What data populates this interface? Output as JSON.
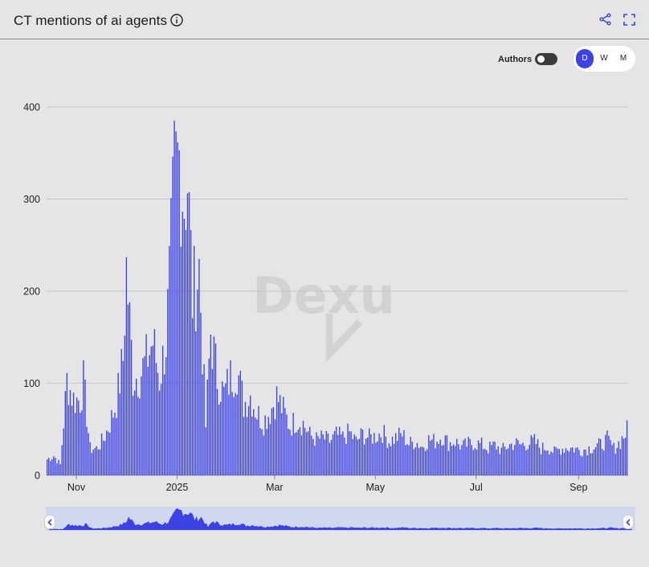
{
  "header": {
    "title": "CT mentions of ai agents"
  },
  "controls": {
    "authors_label": "Authors",
    "authors_toggle_on": false,
    "periods": [
      "D",
      "W",
      "M"
    ],
    "active_period": "D"
  },
  "watermark": "Dexu",
  "colors": {
    "bar": "#3c42e6",
    "nav_fill": "#3c42e6",
    "nav_bg": "#cfd8ec",
    "gridline": "#c8c8c8"
  },
  "chart_data": {
    "type": "bar",
    "ylim": [
      0,
      400
    ],
    "yticks": [
      0,
      100,
      200,
      300,
      400
    ],
    "x_tick_labels": [
      "Nov",
      "2025",
      "Mar",
      "May",
      "Jul",
      "Sep"
    ],
    "x_tick_dates": [
      "2024-11-01",
      "2025-01-01",
      "2025-03-01",
      "2025-05-01",
      "2025-07-01",
      "2025-09-01"
    ],
    "x_range": [
      "2024-10-14",
      "2025-10-01"
    ],
    "grid": true,
    "legend": "none",
    "series": [
      {
        "points": [
          [
            "2024-10-14",
            18
          ],
          [
            "2024-10-18",
            22
          ],
          [
            "2024-10-22",
            12
          ],
          [
            "2024-10-26",
            106
          ],
          [
            "2024-10-30",
            85
          ],
          [
            "2024-11-03",
            84
          ],
          [
            "2024-11-05",
            105
          ],
          [
            "2024-11-09",
            30
          ],
          [
            "2024-11-13",
            30
          ],
          [
            "2024-11-17",
            40
          ],
          [
            "2024-11-21",
            58
          ],
          [
            "2024-11-25",
            82
          ],
          [
            "2024-11-29",
            130
          ],
          [
            "2024-12-01",
            232
          ],
          [
            "2024-12-05",
            110
          ],
          [
            "2024-12-09",
            112
          ],
          [
            "2024-12-13",
            128
          ],
          [
            "2024-12-17",
            150
          ],
          [
            "2024-12-21",
            108
          ],
          [
            "2024-12-25",
            150
          ],
          [
            "2024-12-28",
            250
          ],
          [
            "2024-12-30",
            335
          ],
          [
            "2025-01-02",
            354
          ],
          [
            "2025-01-05",
            310
          ],
          [
            "2025-01-07",
            334
          ],
          [
            "2025-01-10",
            200
          ],
          [
            "2025-01-14",
            232
          ],
          [
            "2025-01-18",
            55
          ],
          [
            "2025-01-21",
            160
          ],
          [
            "2025-01-25",
            110
          ],
          [
            "2025-01-29",
            90
          ],
          [
            "2025-02-02",
            110
          ],
          [
            "2025-02-06",
            120
          ],
          [
            "2025-02-10",
            80
          ],
          [
            "2025-02-14",
            90
          ],
          [
            "2025-02-18",
            70
          ],
          [
            "2025-02-22",
            60
          ],
          [
            "2025-02-26",
            72
          ],
          [
            "2025-03-02",
            88
          ],
          [
            "2025-03-06",
            72
          ],
          [
            "2025-03-10",
            55
          ],
          [
            "2025-03-14",
            62
          ],
          [
            "2025-03-18",
            58
          ],
          [
            "2025-03-22",
            45
          ],
          [
            "2025-03-26",
            40
          ],
          [
            "2025-03-30",
            42
          ],
          [
            "2025-04-03",
            38
          ],
          [
            "2025-04-07",
            45
          ],
          [
            "2025-04-11",
            42
          ],
          [
            "2025-04-15",
            48
          ],
          [
            "2025-04-19",
            38
          ],
          [
            "2025-04-23",
            46
          ],
          [
            "2025-04-27",
            42
          ],
          [
            "2025-05-01",
            44
          ],
          [
            "2025-05-05",
            48
          ],
          [
            "2025-05-09",
            38
          ],
          [
            "2025-05-13",
            42
          ],
          [
            "2025-05-17",
            46
          ],
          [
            "2025-05-21",
            35
          ],
          [
            "2025-05-25",
            38
          ],
          [
            "2025-05-29",
            32
          ],
          [
            "2025-06-02",
            40
          ],
          [
            "2025-06-06",
            38
          ],
          [
            "2025-06-10",
            44
          ],
          [
            "2025-06-14",
            36
          ],
          [
            "2025-06-18",
            38
          ],
          [
            "2025-06-22",
            32
          ],
          [
            "2025-06-26",
            35
          ],
          [
            "2025-06-30",
            36
          ],
          [
            "2025-07-04",
            34
          ],
          [
            "2025-07-08",
            30
          ],
          [
            "2025-07-12",
            34
          ],
          [
            "2025-07-16",
            28
          ],
          [
            "2025-07-20",
            33
          ],
          [
            "2025-07-24",
            36
          ],
          [
            "2025-07-28",
            34
          ],
          [
            "2025-08-01",
            36
          ],
          [
            "2025-08-05",
            38
          ],
          [
            "2025-08-09",
            30
          ],
          [
            "2025-08-13",
            32
          ],
          [
            "2025-08-17",
            26
          ],
          [
            "2025-08-21",
            30
          ],
          [
            "2025-08-25",
            31
          ],
          [
            "2025-08-29",
            30
          ],
          [
            "2025-09-02",
            28
          ],
          [
            "2025-09-06",
            30
          ],
          [
            "2025-09-10",
            32
          ],
          [
            "2025-09-14",
            34
          ],
          [
            "2025-09-18",
            40
          ],
          [
            "2025-09-22",
            30
          ],
          [
            "2025-09-26",
            38
          ],
          [
            "2025-09-30",
            50
          ]
        ]
      }
    ]
  }
}
